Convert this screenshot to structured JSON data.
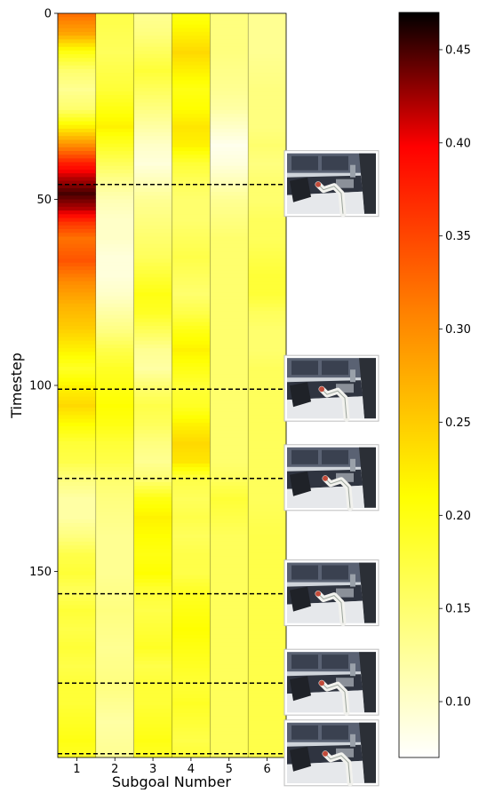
{
  "chart_data": {
    "type": "heatmap",
    "xlabel": "Subgoal Number",
    "ylabel": "Timestep",
    "x_tick_labels": [
      "1",
      "2",
      "3",
      "4",
      "5",
      "6"
    ],
    "y_ticks": [
      0,
      50,
      100,
      150
    ],
    "timestep_range": [
      0,
      200
    ],
    "colormap": "hot_r",
    "colorbar_range": [
      0.07,
      0.47
    ],
    "colorbar_ticks": [
      0.1,
      0.15,
      0.2,
      0.25,
      0.3,
      0.35,
      0.4,
      0.45
    ],
    "colorbar_tick_labels": [
      "0.10",
      "0.15",
      "0.20",
      "0.25",
      "0.30",
      "0.35",
      "0.40",
      "0.45"
    ],
    "subgoal_boundaries": [
      46,
      101,
      125,
      156,
      180,
      199
    ],
    "snapshot_timesteps": [
      46,
      101,
      125,
      156,
      180,
      199
    ],
    "columns": [
      {
        "subgoal": "1",
        "keyframes": [
          [
            0,
            0.32
          ],
          [
            5,
            0.28
          ],
          [
            10,
            0.2
          ],
          [
            15,
            0.15
          ],
          [
            20,
            0.13
          ],
          [
            25,
            0.15
          ],
          [
            30,
            0.22
          ],
          [
            35,
            0.3
          ],
          [
            40,
            0.38
          ],
          [
            44,
            0.42
          ],
          [
            48,
            0.45
          ],
          [
            52,
            0.42
          ],
          [
            56,
            0.36
          ],
          [
            60,
            0.32
          ],
          [
            66,
            0.34
          ],
          [
            72,
            0.3
          ],
          [
            78,
            0.27
          ],
          [
            84,
            0.25
          ],
          [
            90,
            0.22
          ],
          [
            95,
            0.19
          ],
          [
            100,
            0.22
          ],
          [
            105,
            0.24
          ],
          [
            110,
            0.21
          ],
          [
            115,
            0.18
          ],
          [
            120,
            0.17
          ],
          [
            125,
            0.14
          ],
          [
            130,
            0.12
          ],
          [
            135,
            0.12
          ],
          [
            140,
            0.14
          ],
          [
            145,
            0.17
          ],
          [
            150,
            0.18
          ],
          [
            155,
            0.16
          ],
          [
            160,
            0.18
          ],
          [
            165,
            0.17
          ],
          [
            170,
            0.18
          ],
          [
            175,
            0.17
          ],
          [
            180,
            0.18
          ],
          [
            185,
            0.18
          ],
          [
            190,
            0.19
          ],
          [
            195,
            0.2
          ],
          [
            199,
            0.19
          ]
        ]
      },
      {
        "subgoal": "2",
        "keyframes": [
          [
            0,
            0.17
          ],
          [
            10,
            0.16
          ],
          [
            20,
            0.18
          ],
          [
            25,
            0.2
          ],
          [
            30,
            0.22
          ],
          [
            35,
            0.19
          ],
          [
            40,
            0.16
          ],
          [
            45,
            0.13
          ],
          [
            50,
            0.11
          ],
          [
            55,
            0.1
          ],
          [
            60,
            0.1
          ],
          [
            65,
            0.09
          ],
          [
            70,
            0.09
          ],
          [
            75,
            0.1
          ],
          [
            80,
            0.12
          ],
          [
            85,
            0.14
          ],
          [
            90,
            0.17
          ],
          [
            95,
            0.19
          ],
          [
            100,
            0.2
          ],
          [
            105,
            0.21
          ],
          [
            110,
            0.2
          ],
          [
            115,
            0.18
          ],
          [
            120,
            0.17
          ],
          [
            125,
            0.15
          ],
          [
            130,
            0.14
          ],
          [
            140,
            0.13
          ],
          [
            150,
            0.13
          ],
          [
            160,
            0.14
          ],
          [
            170,
            0.13
          ],
          [
            180,
            0.14
          ],
          [
            190,
            0.12
          ],
          [
            199,
            0.13
          ]
        ]
      },
      {
        "subgoal": "3",
        "keyframes": [
          [
            0,
            0.13
          ],
          [
            5,
            0.14
          ],
          [
            10,
            0.16
          ],
          [
            15,
            0.18
          ],
          [
            20,
            0.16
          ],
          [
            25,
            0.14
          ],
          [
            30,
            0.12
          ],
          [
            35,
            0.1
          ],
          [
            40,
            0.09
          ],
          [
            45,
            0.11
          ],
          [
            50,
            0.13
          ],
          [
            55,
            0.14
          ],
          [
            60,
            0.15
          ],
          [
            65,
            0.16
          ],
          [
            70,
            0.18
          ],
          [
            75,
            0.2
          ],
          [
            80,
            0.19
          ],
          [
            85,
            0.16
          ],
          [
            90,
            0.13
          ],
          [
            95,
            0.12
          ],
          [
            100,
            0.15
          ],
          [
            105,
            0.17
          ],
          [
            110,
            0.16
          ],
          [
            115,
            0.14
          ],
          [
            120,
            0.13
          ],
          [
            125,
            0.15
          ],
          [
            130,
            0.2
          ],
          [
            135,
            0.22
          ],
          [
            140,
            0.21
          ],
          [
            145,
            0.2
          ],
          [
            150,
            0.21
          ],
          [
            155,
            0.18
          ],
          [
            160,
            0.17
          ],
          [
            165,
            0.18
          ],
          [
            170,
            0.19
          ],
          [
            175,
            0.17
          ],
          [
            180,
            0.18
          ],
          [
            185,
            0.18
          ],
          [
            190,
            0.19
          ],
          [
            195,
            0.2
          ],
          [
            199,
            0.19
          ]
        ]
      },
      {
        "subgoal": "4",
        "keyframes": [
          [
            0,
            0.2
          ],
          [
            5,
            0.22
          ],
          [
            10,
            0.24
          ],
          [
            15,
            0.22
          ],
          [
            20,
            0.2
          ],
          [
            25,
            0.21
          ],
          [
            30,
            0.23
          ],
          [
            35,
            0.22
          ],
          [
            40,
            0.18
          ],
          [
            45,
            0.16
          ],
          [
            50,
            0.15
          ],
          [
            55,
            0.15
          ],
          [
            60,
            0.16
          ],
          [
            65,
            0.17
          ],
          [
            70,
            0.16
          ],
          [
            75,
            0.15
          ],
          [
            80,
            0.17
          ],
          [
            85,
            0.2
          ],
          [
            90,
            0.22
          ],
          [
            95,
            0.2
          ],
          [
            100,
            0.18
          ],
          [
            105,
            0.19
          ],
          [
            110,
            0.22
          ],
          [
            115,
            0.24
          ],
          [
            120,
            0.23
          ],
          [
            125,
            0.17
          ],
          [
            130,
            0.16
          ],
          [
            135,
            0.17
          ],
          [
            140,
            0.16
          ],
          [
            145,
            0.17
          ],
          [
            150,
            0.17
          ],
          [
            155,
            0.19
          ],
          [
            160,
            0.2
          ],
          [
            165,
            0.21
          ],
          [
            170,
            0.2
          ],
          [
            175,
            0.19
          ],
          [
            180,
            0.18
          ],
          [
            185,
            0.19
          ],
          [
            190,
            0.18
          ],
          [
            195,
            0.17
          ],
          [
            199,
            0.18
          ]
        ]
      },
      {
        "subgoal": "5",
        "keyframes": [
          [
            0,
            0.14
          ],
          [
            10,
            0.14
          ],
          [
            20,
            0.13
          ],
          [
            25,
            0.12
          ],
          [
            30,
            0.1
          ],
          [
            35,
            0.08
          ],
          [
            40,
            0.09
          ],
          [
            45,
            0.11
          ],
          [
            50,
            0.13
          ],
          [
            55,
            0.14
          ],
          [
            60,
            0.15
          ],
          [
            70,
            0.15
          ],
          [
            80,
            0.15
          ],
          [
            90,
            0.15
          ],
          [
            100,
            0.15
          ],
          [
            110,
            0.15
          ],
          [
            120,
            0.15
          ],
          [
            125,
            0.16
          ],
          [
            130,
            0.18
          ],
          [
            135,
            0.17
          ],
          [
            140,
            0.16
          ],
          [
            150,
            0.16
          ],
          [
            160,
            0.16
          ],
          [
            170,
            0.16
          ],
          [
            180,
            0.16
          ],
          [
            190,
            0.16
          ],
          [
            199,
            0.16
          ]
        ]
      },
      {
        "subgoal": "6",
        "keyframes": [
          [
            0,
            0.13
          ],
          [
            10,
            0.13
          ],
          [
            20,
            0.14
          ],
          [
            30,
            0.14
          ],
          [
            35,
            0.15
          ],
          [
            40,
            0.14
          ],
          [
            45,
            0.15
          ],
          [
            50,
            0.15
          ],
          [
            55,
            0.16
          ],
          [
            60,
            0.16
          ],
          [
            65,
            0.17
          ],
          [
            70,
            0.18
          ],
          [
            75,
            0.18
          ],
          [
            80,
            0.16
          ],
          [
            85,
            0.15
          ],
          [
            90,
            0.15
          ],
          [
            95,
            0.16
          ],
          [
            100,
            0.16
          ],
          [
            110,
            0.16
          ],
          [
            120,
            0.16
          ],
          [
            130,
            0.16
          ],
          [
            140,
            0.17
          ],
          [
            150,
            0.17
          ],
          [
            160,
            0.17
          ],
          [
            170,
            0.17
          ],
          [
            180,
            0.17
          ],
          [
            190,
            0.17
          ],
          [
            199,
            0.17
          ]
        ]
      }
    ]
  },
  "colors": {
    "cmap_white": "#ffffff",
    "cmap_yellow": "#ffff00",
    "cmap_orange": "#ff8000",
    "cmap_red": "#ff0000",
    "cmap_black": "#000000",
    "boundary_line": "#000000"
  }
}
